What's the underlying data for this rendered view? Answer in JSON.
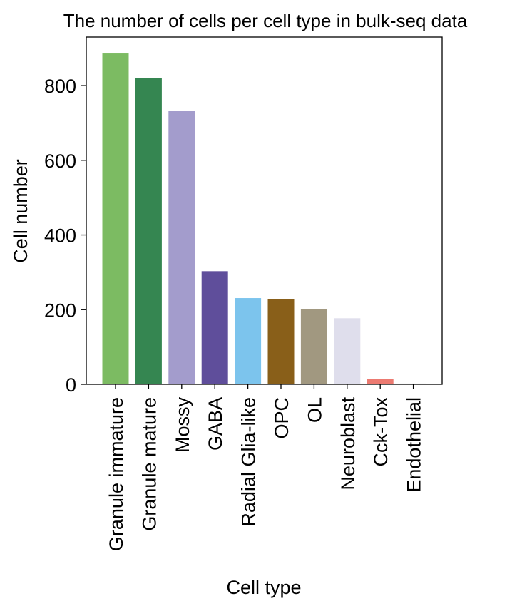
{
  "chart_data": {
    "type": "bar",
    "title": "The number of cells per cell type in bulk-seq data",
    "xlabel": "Cell type",
    "ylabel": "Cell number",
    "ylim": [
      0,
      930
    ],
    "yticks": [
      "0",
      "200",
      "400",
      "600",
      "800"
    ],
    "grid": false,
    "categories": [
      "Granule immature",
      "Granule mature",
      "Mossy",
      "GABA",
      "Radial Glia-like",
      "OPC",
      "OL",
      "Neuroblast",
      "Cck-Tox",
      "Endothelial"
    ],
    "values": [
      886,
      820,
      732,
      303,
      231,
      229,
      202,
      177,
      14,
      2
    ],
    "colors": [
      "#7cbb62",
      "#358651",
      "#a39ccc",
      "#5f4e9b",
      "#7cc4ed",
      "#895f19",
      "#a19880",
      "#dfdeec",
      "#ec7a71",
      "#b3b3b3"
    ]
  }
}
